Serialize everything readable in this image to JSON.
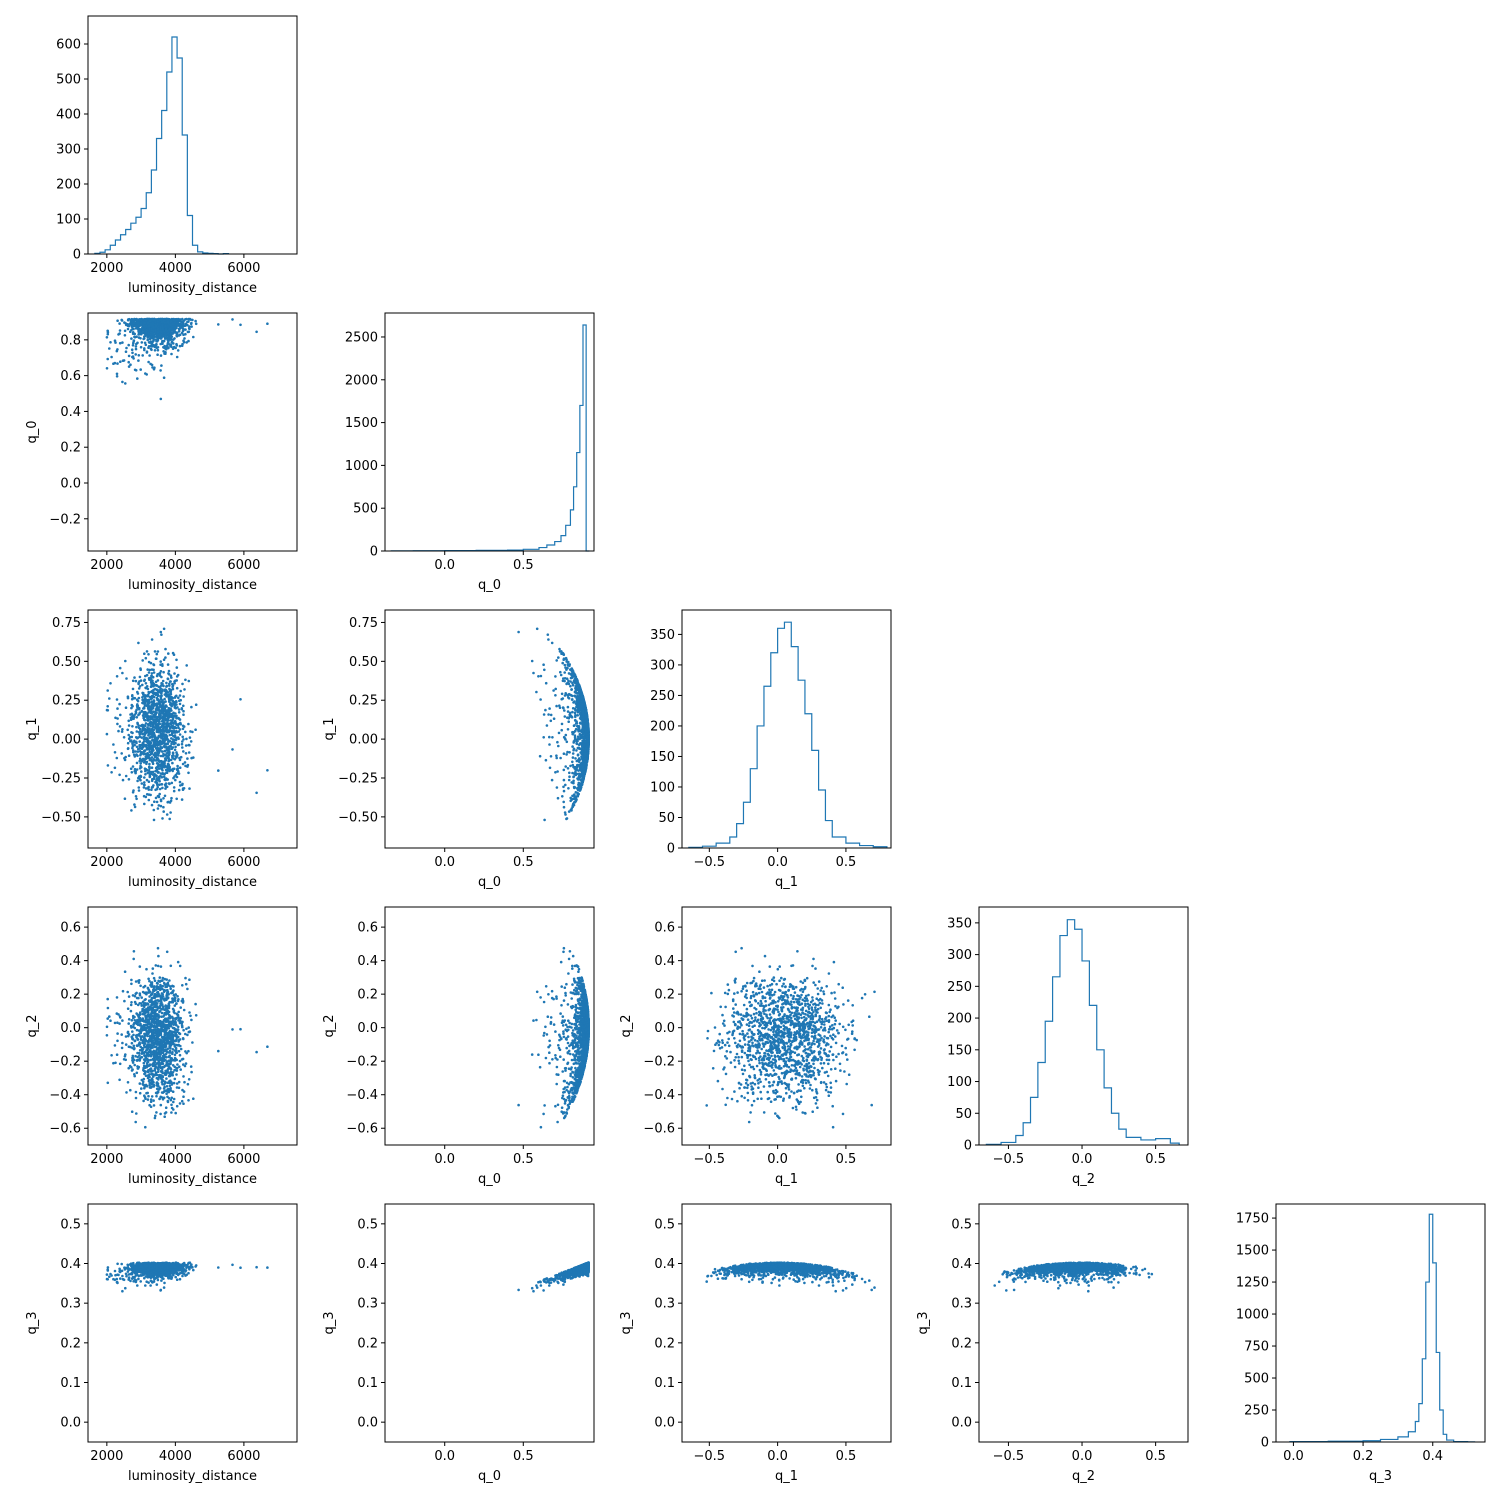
{
  "chart_data": {
    "type": "corner",
    "parameters": [
      "luminosity_distance",
      "q_0",
      "q_1",
      "q_2",
      "q_3"
    ],
    "colors": {
      "series": "#1f77b4",
      "frame": "#000000"
    },
    "axes": {
      "luminosity_distance": {
        "label": "luminosity_distance",
        "range": [
          1450,
          7550
        ],
        "ticks": [
          2000,
          4000,
          6000
        ]
      },
      "q_0": {
        "label": "q_0",
        "range": [
          -0.38,
          0.95
        ],
        "ticks": [
          0.0,
          0.5
        ],
        "scatter_ticks": [
          -0.2,
          0.0,
          0.2,
          0.4,
          0.6,
          0.8
        ]
      },
      "q_1": {
        "label": "q_1",
        "range": [
          -0.7,
          0.83
        ],
        "ticks": [
          -0.5,
          0.0,
          0.5
        ],
        "scatter_ticks": [
          -0.5,
          -0.25,
          0.0,
          0.25,
          0.5,
          0.75
        ],
        "tick_labels": [
          "−0.50",
          "−0.25",
          "0.00",
          "0.25",
          "0.50",
          "0.75"
        ]
      },
      "q_2": {
        "label": "q_2",
        "range": [
          -0.7,
          0.72
        ],
        "ticks": [
          -0.5,
          0.0,
          0.5
        ],
        "scatter_ticks": [
          -0.6,
          -0.4,
          -0.2,
          0.0,
          0.2,
          0.4,
          0.6
        ]
      },
      "q_3": {
        "label": "q_3",
        "range": [
          -0.05,
          0.55
        ],
        "ticks": [
          0.0,
          0.2,
          0.4
        ],
        "scatter_ticks": [
          0.0,
          0.1,
          0.2,
          0.3,
          0.4,
          0.5
        ]
      }
    },
    "histograms": [
      {
        "param": "luminosity_distance",
        "ylim": [
          0,
          680
        ],
        "yticks": [
          0,
          100,
          200,
          300,
          400,
          500,
          600
        ],
        "bin_edges": [
          1650,
          1800,
          1950,
          2100,
          2250,
          2400,
          2550,
          2700,
          2850,
          3000,
          3150,
          3300,
          3450,
          3600,
          3750,
          3900,
          4050,
          4200,
          4350,
          4500,
          4650,
          4800,
          4950,
          5100,
          5250,
          5400,
          5550
        ],
        "counts": [
          2,
          5,
          12,
          25,
          40,
          55,
          70,
          88,
          105,
          130,
          175,
          240,
          330,
          410,
          520,
          620,
          560,
          340,
          110,
          25,
          6,
          3,
          2,
          1,
          0,
          1
        ]
      },
      {
        "param": "q_0",
        "ylim": [
          0,
          2780
        ],
        "yticks": [
          0,
          500,
          1000,
          1500,
          2000,
          2500
        ],
        "bin_edges": [
          -0.34,
          -0.2,
          0.0,
          0.2,
          0.4,
          0.5,
          0.6,
          0.65,
          0.7,
          0.74,
          0.77,
          0.8,
          0.82,
          0.84,
          0.86,
          0.88,
          0.9,
          0.92
        ],
        "counts": [
          2,
          3,
          5,
          8,
          10,
          20,
          40,
          70,
          110,
          180,
          300,
          480,
          750,
          1150,
          1700,
          2640,
          0
        ]
      },
      {
        "param": "q_1",
        "ylim": [
          0,
          390
        ],
        "yticks": [
          0,
          50,
          100,
          150,
          200,
          250,
          300,
          350
        ],
        "bin_edges": [
          -0.65,
          -0.55,
          -0.45,
          -0.35,
          -0.3,
          -0.25,
          -0.2,
          -0.15,
          -0.1,
          -0.05,
          0.0,
          0.05,
          0.1,
          0.15,
          0.2,
          0.25,
          0.3,
          0.35,
          0.4,
          0.5,
          0.6,
          0.7,
          0.8
        ],
        "counts": [
          1,
          3,
          8,
          18,
          40,
          75,
          130,
          200,
          265,
          320,
          360,
          370,
          330,
          275,
          220,
          160,
          95,
          45,
          18,
          8,
          4,
          2
        ]
      },
      {
        "param": "q_2",
        "ylim": [
          0,
          375
        ],
        "yticks": [
          0,
          50,
          100,
          150,
          200,
          250,
          300,
          350
        ],
        "bin_edges": [
          -0.65,
          -0.55,
          -0.45,
          -0.4,
          -0.35,
          -0.3,
          -0.25,
          -0.2,
          -0.15,
          -0.1,
          -0.05,
          0.0,
          0.05,
          0.1,
          0.15,
          0.2,
          0.25,
          0.3,
          0.4,
          0.5,
          0.6,
          0.66
        ],
        "counts": [
          1,
          4,
          15,
          35,
          75,
          130,
          195,
          265,
          330,
          355,
          340,
          290,
          220,
          150,
          90,
          50,
          25,
          12,
          8,
          10,
          3
        ]
      },
      {
        "param": "q_3",
        "ylim": [
          0,
          1860
        ],
        "yticks": [
          0,
          250,
          500,
          750,
          1000,
          1250,
          1500,
          1750
        ],
        "bin_edges": [
          -0.01,
          0.1,
          0.2,
          0.25,
          0.3,
          0.33,
          0.35,
          0.36,
          0.37,
          0.38,
          0.39,
          0.4,
          0.41,
          0.42,
          0.43,
          0.44,
          0.46,
          0.5,
          0.52
        ],
        "counts": [
          3,
          6,
          10,
          20,
          40,
          80,
          160,
          300,
          650,
          1250,
          1780,
          1400,
          700,
          250,
          60,
          15,
          3,
          1
        ]
      }
    ],
    "scatter": [
      {
        "x": "luminosity_distance",
        "y": "q_0",
        "n_points": 1500,
        "ylim": [
          -0.38,
          0.95
        ]
      },
      {
        "x": "luminosity_distance",
        "y": "q_1",
        "n_points": 1500,
        "ylim": [
          -0.7,
          0.83
        ]
      },
      {
        "x": "q_0",
        "y": "q_1",
        "n_points": 1500,
        "ylim": [
          -0.7,
          0.83
        ]
      },
      {
        "x": "luminosity_distance",
        "y": "q_2",
        "n_points": 1500,
        "ylim": [
          -0.7,
          0.72
        ]
      },
      {
        "x": "q_0",
        "y": "q_2",
        "n_points": 1500,
        "ylim": [
          -0.7,
          0.72
        ]
      },
      {
        "x": "q_1",
        "y": "q_2",
        "n_points": 1500,
        "ylim": [
          -0.7,
          0.72
        ]
      },
      {
        "x": "luminosity_distance",
        "y": "q_3",
        "n_points": 1500,
        "ylim": [
          -0.05,
          0.55
        ]
      },
      {
        "x": "q_0",
        "y": "q_3",
        "n_points": 1500,
        "ylim": [
          -0.05,
          0.55
        ]
      },
      {
        "x": "q_1",
        "y": "q_3",
        "n_points": 1500,
        "ylim": [
          -0.05,
          0.55
        ]
      },
      {
        "x": "q_2",
        "y": "q_3",
        "n_points": 1500,
        "ylim": [
          -0.05,
          0.55
        ]
      }
    ]
  }
}
